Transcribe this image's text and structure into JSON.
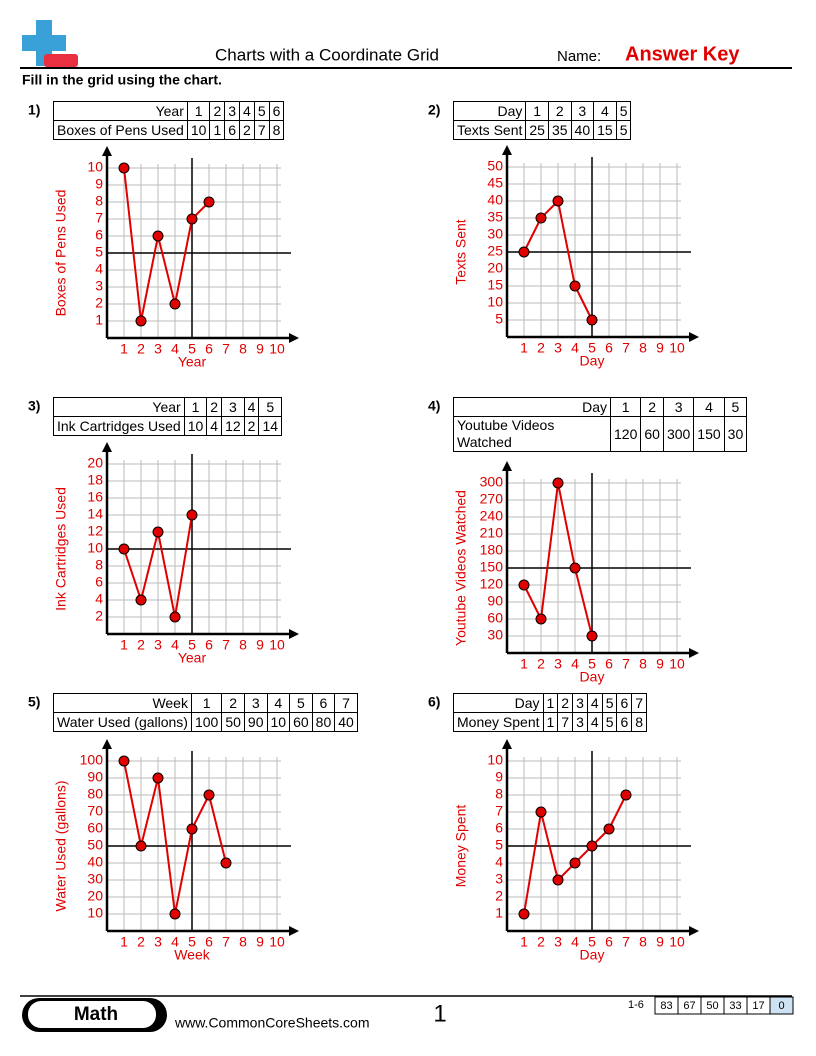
{
  "header": {
    "title": "Charts with a Coordinate Grid",
    "name_label": "Name:",
    "answer_key": "Answer Key"
  },
  "instructions": "Fill in the grid using the chart.",
  "chart_data": [
    {
      "type": "line",
      "number": "1)",
      "x_label": "Year",
      "y_label": "Boxes of Pens Used",
      "x": [
        1,
        2,
        3,
        4,
        5,
        6
      ],
      "values": [
        10,
        1,
        6,
        2,
        7,
        8
      ],
      "color": "#e00000",
      "xlim": [
        0,
        10
      ],
      "xticks": [
        1,
        2,
        3,
        4,
        5,
        6,
        7,
        8,
        9,
        10
      ],
      "ylim": [
        0,
        10
      ],
      "yticks": [
        1,
        2,
        3,
        4,
        5,
        6,
        7,
        8,
        9,
        10
      ],
      "grid": true,
      "reference_lines": {
        "x": 5,
        "y": 5
      }
    },
    {
      "type": "line",
      "number": "2)",
      "x_label": "Day",
      "y_label": "Texts Sent",
      "x": [
        1,
        2,
        3,
        4,
        5
      ],
      "values": [
        25,
        35,
        40,
        15,
        5
      ],
      "color": "#e00000",
      "xlim": [
        0,
        10
      ],
      "xticks": [
        1,
        2,
        3,
        4,
        5,
        6,
        7,
        8,
        9,
        10
      ],
      "ylim": [
        0,
        50
      ],
      "yticks": [
        5,
        10,
        15,
        20,
        25,
        30,
        35,
        40,
        45,
        50
      ],
      "grid": true,
      "reference_lines": {
        "x": 5,
        "y": 25
      }
    },
    {
      "type": "line",
      "number": "3)",
      "x_label": "Year",
      "y_label": "Ink Cartridges Used",
      "x": [
        1,
        2,
        3,
        4,
        5
      ],
      "values": [
        10,
        4,
        12,
        2,
        14
      ],
      "color": "#e00000",
      "xlim": [
        0,
        10
      ],
      "xticks": [
        1,
        2,
        3,
        4,
        5,
        6,
        7,
        8,
        9,
        10
      ],
      "ylim": [
        0,
        20
      ],
      "yticks": [
        2,
        4,
        6,
        8,
        10,
        12,
        14,
        16,
        18,
        20
      ],
      "grid": true,
      "reference_lines": {
        "x": 5,
        "y": 10
      }
    },
    {
      "type": "line",
      "number": "4)",
      "x_label": "Day",
      "y_label": "Youtube Videos Watched",
      "x": [
        1,
        2,
        3,
        4,
        5
      ],
      "values": [
        120,
        60,
        300,
        150,
        30
      ],
      "color": "#e00000",
      "xlim": [
        0,
        10
      ],
      "xticks": [
        1,
        2,
        3,
        4,
        5,
        6,
        7,
        8,
        9,
        10
      ],
      "ylim": [
        0,
        300
      ],
      "yticks": [
        30,
        60,
        90,
        120,
        150,
        180,
        210,
        240,
        270,
        300
      ],
      "grid": true,
      "reference_lines": {
        "x": 5,
        "y": 150
      }
    },
    {
      "type": "line",
      "number": "5)",
      "x_label": "Week",
      "y_label": "Water Used (gallons)",
      "x": [
        1,
        2,
        3,
        4,
        5,
        6,
        7
      ],
      "values": [
        100,
        50,
        90,
        10,
        60,
        80,
        40
      ],
      "color": "#e00000",
      "xlim": [
        0,
        10
      ],
      "xticks": [
        1,
        2,
        3,
        4,
        5,
        6,
        7,
        8,
        9,
        10
      ],
      "ylim": [
        0,
        100
      ],
      "yticks": [
        10,
        20,
        30,
        40,
        50,
        60,
        70,
        80,
        90,
        100
      ],
      "grid": true,
      "reference_lines": {
        "x": 5,
        "y": 50
      }
    },
    {
      "type": "line",
      "number": "6)",
      "x_label": "Day",
      "y_label": "Money Spent",
      "x": [
        1,
        2,
        3,
        4,
        5,
        6,
        7
      ],
      "values": [
        1,
        7,
        3,
        4,
        5,
        6,
        8
      ],
      "color": "#e00000",
      "xlim": [
        0,
        10
      ],
      "xticks": [
        1,
        2,
        3,
        4,
        5,
        6,
        7,
        8,
        9,
        10
      ],
      "ylim": [
        0,
        10
      ],
      "yticks": [
        1,
        2,
        3,
        4,
        5,
        6,
        7,
        8,
        9,
        10
      ],
      "grid": true,
      "reference_lines": {
        "x": 5,
        "y": 5
      }
    }
  ],
  "footer": {
    "subject": "Math",
    "website": "www.CommonCoreSheets.com",
    "page": "1",
    "range": "1-6",
    "scores": [
      83,
      67,
      50,
      33,
      17,
      0
    ]
  }
}
